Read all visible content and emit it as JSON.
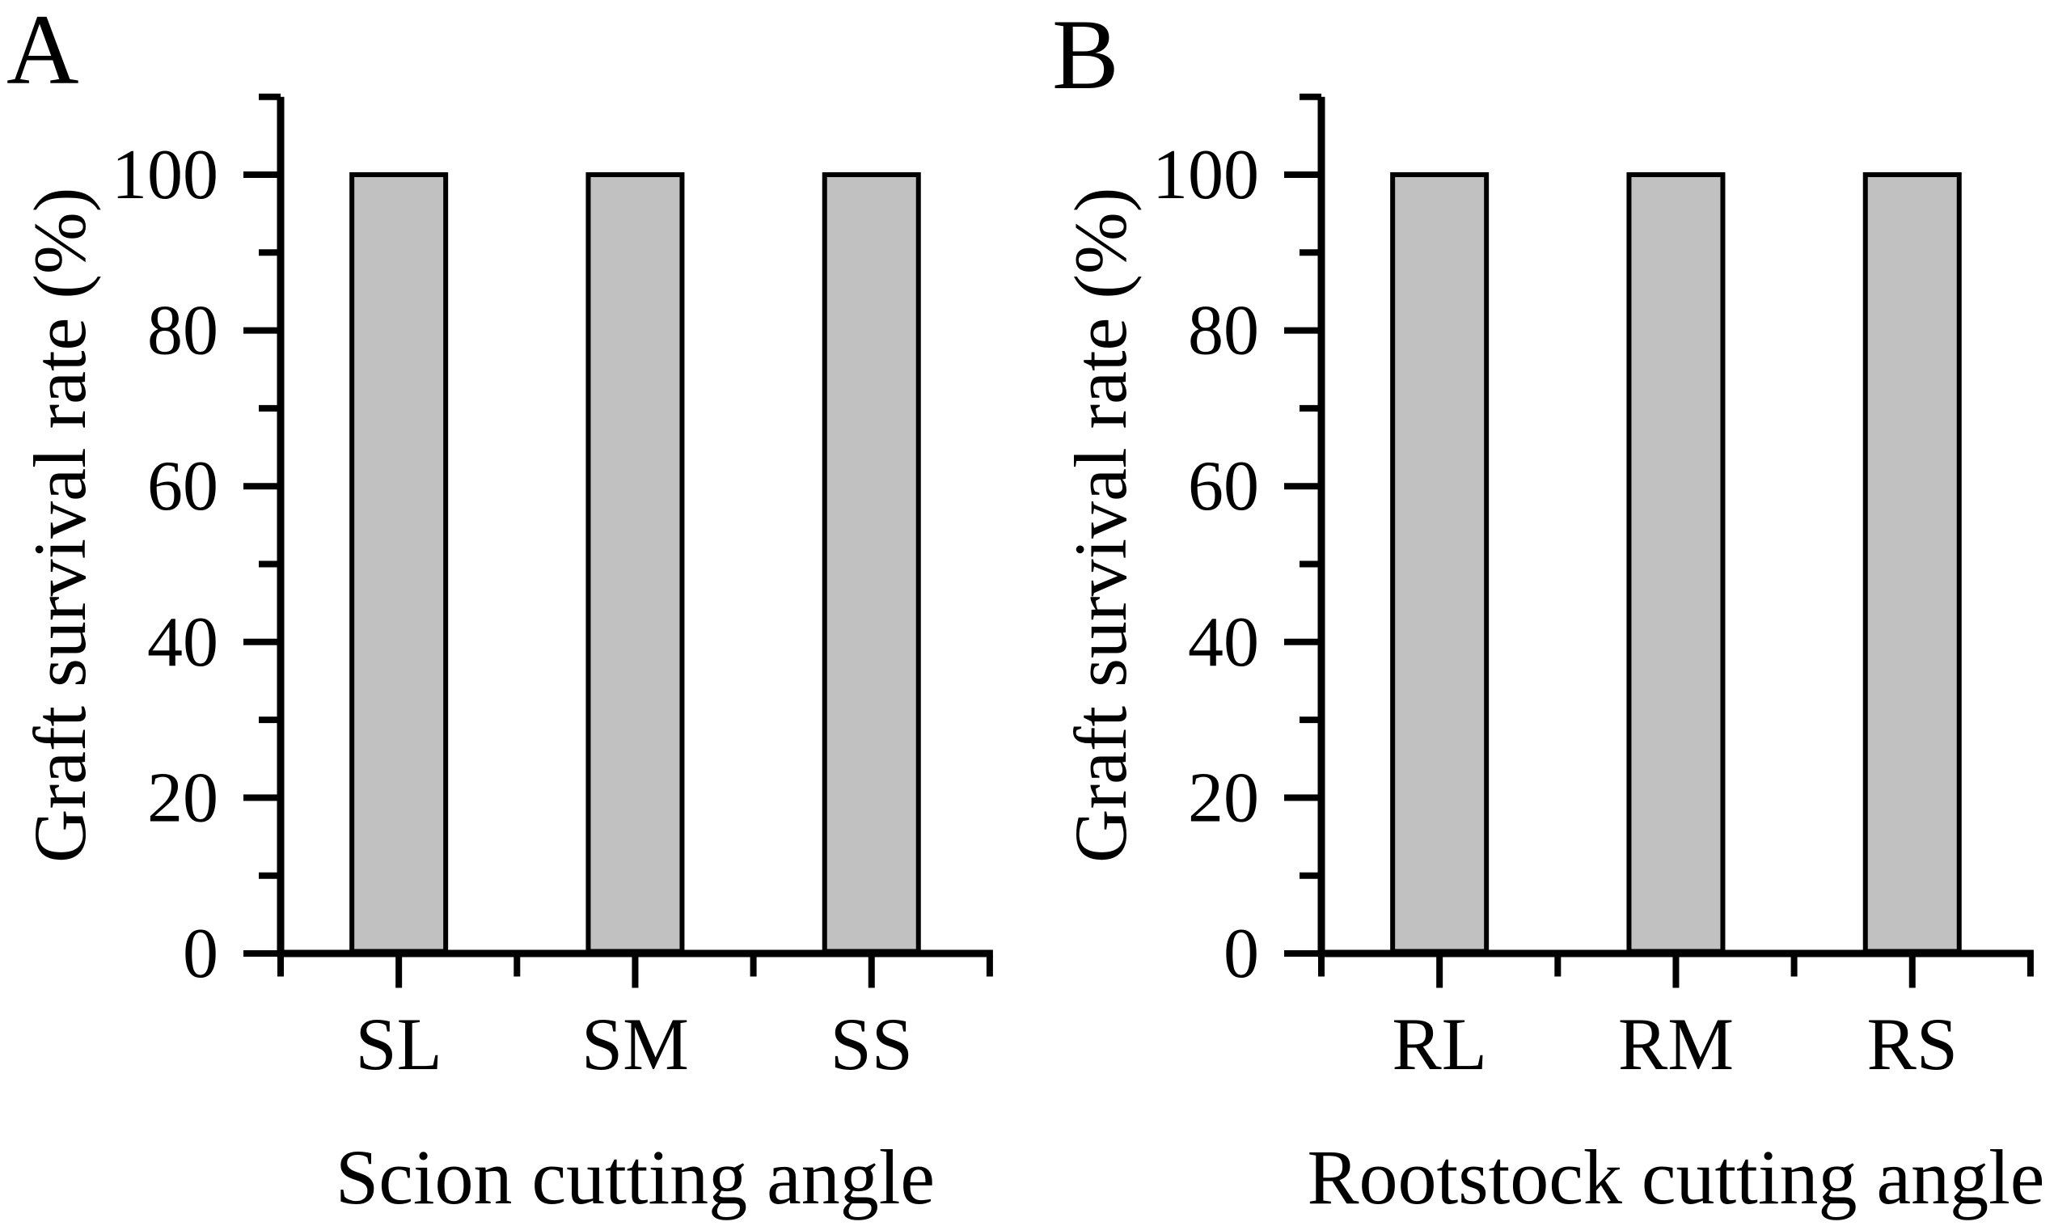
{
  "figure": {
    "background": "#ffffff",
    "text_color": "#000000",
    "axis_color": "#000000"
  },
  "chart_data": [
    {
      "type": "bar",
      "panel_label": "A",
      "xlabel": "Scion cutting angle",
      "ylabel": "Graft survival rate (%)",
      "categories": [
        "SL",
        "SM",
        "SS"
      ],
      "values": [
        100,
        100,
        100
      ],
      "ylim": [
        0,
        110
      ],
      "ytick_labels": [
        "0",
        "20",
        "40",
        "60",
        "80",
        "100"
      ],
      "ytick_values_major": [
        0,
        20,
        40,
        60,
        80,
        100
      ],
      "ytick_values_minor": [
        10,
        30,
        50,
        70,
        90,
        110
      ],
      "grid": false,
      "legend": "none",
      "bar_fill": "#c1c1c1",
      "bar_edge": "#000000"
    },
    {
      "type": "bar",
      "panel_label": "B",
      "xlabel": "Rootstock cutting angle",
      "ylabel": "Graft survival rate (%)",
      "categories": [
        "RL",
        "RM",
        "RS"
      ],
      "values": [
        100,
        100,
        100
      ],
      "ylim": [
        0,
        110
      ],
      "ytick_labels": [
        "0",
        "20",
        "40",
        "60",
        "80",
        "100"
      ],
      "ytick_values_major": [
        0,
        20,
        40,
        60,
        80,
        100
      ],
      "ytick_values_minor": [
        10,
        30,
        50,
        70,
        90,
        110
      ],
      "grid": false,
      "legend": "none",
      "bar_fill": "#c1c1c1",
      "bar_edge": "#000000"
    }
  ]
}
